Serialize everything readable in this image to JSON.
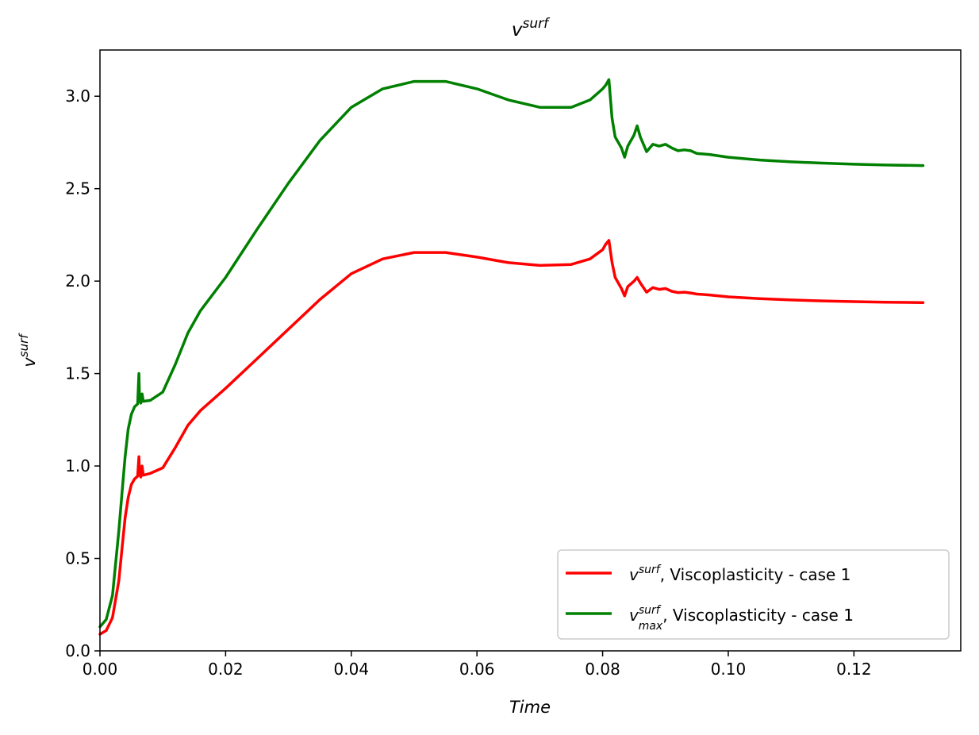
{
  "chart_data": {
    "type": "line",
    "title": {
      "base": "v",
      "sup": "surf"
    },
    "xlabel": "Time",
    "ylabel": {
      "base": "v",
      "sup": "surf"
    },
    "xlim": [
      0,
      0.137
    ],
    "ylim": [
      0,
      3.25
    ],
    "xticks": [
      0,
      0.02,
      0.04,
      0.06,
      0.08,
      0.1,
      0.12
    ],
    "xtick_labels": [
      "0.00",
      "0.02",
      "0.04",
      "0.06",
      "0.08",
      "0.10",
      "0.12"
    ],
    "yticks": [
      0,
      0.5,
      1.0,
      1.5,
      2.0,
      2.5,
      3.0
    ],
    "ytick_labels": [
      "0.0",
      "0.5",
      "1.0",
      "1.5",
      "2.0",
      "2.5",
      "3.0"
    ],
    "grid": false,
    "legend_position": "lower-right",
    "series": [
      {
        "name": {
          "base": "v",
          "sup": "surf",
          "sub": "",
          "text": ", Viscoplasticity - case 1"
        },
        "color": "#ff0000",
        "points": [
          [
            0.0,
            0.09
          ],
          [
            0.001,
            0.11
          ],
          [
            0.002,
            0.18
          ],
          [
            0.003,
            0.38
          ],
          [
            0.0035,
            0.55
          ],
          [
            0.004,
            0.72
          ],
          [
            0.0045,
            0.83
          ],
          [
            0.005,
            0.9
          ],
          [
            0.0055,
            0.93
          ],
          [
            0.006,
            0.945
          ],
          [
            0.0062,
            1.05
          ],
          [
            0.0063,
            0.96
          ],
          [
            0.0065,
            0.94
          ],
          [
            0.0067,
            1.0
          ],
          [
            0.0069,
            0.95
          ],
          [
            0.008,
            0.96
          ],
          [
            0.01,
            0.99
          ],
          [
            0.012,
            1.1
          ],
          [
            0.014,
            1.22
          ],
          [
            0.016,
            1.3
          ],
          [
            0.02,
            1.42
          ],
          [
            0.025,
            1.58
          ],
          [
            0.03,
            1.74
          ],
          [
            0.035,
            1.9
          ],
          [
            0.04,
            2.04
          ],
          [
            0.045,
            2.12
          ],
          [
            0.05,
            2.155
          ],
          [
            0.055,
            2.155
          ],
          [
            0.06,
            2.13
          ],
          [
            0.065,
            2.1
          ],
          [
            0.07,
            2.085
          ],
          [
            0.075,
            2.09
          ],
          [
            0.078,
            2.12
          ],
          [
            0.08,
            2.17
          ],
          [
            0.0805,
            2.2
          ],
          [
            0.081,
            2.22
          ],
          [
            0.0815,
            2.1
          ],
          [
            0.082,
            2.02
          ],
          [
            0.083,
            1.96
          ],
          [
            0.0835,
            1.92
          ],
          [
            0.084,
            1.97
          ],
          [
            0.085,
            2.0
          ],
          [
            0.0855,
            2.02
          ],
          [
            0.086,
            1.99
          ],
          [
            0.087,
            1.94
          ],
          [
            0.088,
            1.965
          ],
          [
            0.089,
            1.955
          ],
          [
            0.09,
            1.96
          ],
          [
            0.091,
            1.945
          ],
          [
            0.092,
            1.938
          ],
          [
            0.093,
            1.94
          ],
          [
            0.094,
            1.936
          ],
          [
            0.095,
            1.93
          ],
          [
            0.097,
            1.925
          ],
          [
            0.1,
            1.915
          ],
          [
            0.105,
            1.905
          ],
          [
            0.11,
            1.898
          ],
          [
            0.115,
            1.893
          ],
          [
            0.12,
            1.889
          ],
          [
            0.125,
            1.886
          ],
          [
            0.131,
            1.884
          ]
        ]
      },
      {
        "name": {
          "base": "v",
          "sup": "surf",
          "sub": "max",
          "text": ", Viscoplasticity - case 1"
        },
        "color": "#008000",
        "points": [
          [
            0.0,
            0.13
          ],
          [
            0.001,
            0.17
          ],
          [
            0.002,
            0.3
          ],
          [
            0.003,
            0.65
          ],
          [
            0.0035,
            0.85
          ],
          [
            0.004,
            1.05
          ],
          [
            0.0045,
            1.2
          ],
          [
            0.005,
            1.28
          ],
          [
            0.0055,
            1.32
          ],
          [
            0.006,
            1.335
          ],
          [
            0.0062,
            1.5
          ],
          [
            0.0063,
            1.36
          ],
          [
            0.0065,
            1.34
          ],
          [
            0.0067,
            1.39
          ],
          [
            0.0069,
            1.35
          ],
          [
            0.008,
            1.355
          ],
          [
            0.01,
            1.4
          ],
          [
            0.012,
            1.55
          ],
          [
            0.014,
            1.72
          ],
          [
            0.016,
            1.84
          ],
          [
            0.02,
            2.02
          ],
          [
            0.025,
            2.28
          ],
          [
            0.03,
            2.53
          ],
          [
            0.035,
            2.76
          ],
          [
            0.04,
            2.94
          ],
          [
            0.045,
            3.04
          ],
          [
            0.05,
            3.08
          ],
          [
            0.055,
            3.08
          ],
          [
            0.06,
            3.04
          ],
          [
            0.065,
            2.98
          ],
          [
            0.07,
            2.94
          ],
          [
            0.075,
            2.94
          ],
          [
            0.078,
            2.98
          ],
          [
            0.08,
            3.04
          ],
          [
            0.0805,
            3.06
          ],
          [
            0.081,
            3.09
          ],
          [
            0.0815,
            2.88
          ],
          [
            0.082,
            2.78
          ],
          [
            0.083,
            2.72
          ],
          [
            0.0835,
            2.67
          ],
          [
            0.084,
            2.73
          ],
          [
            0.085,
            2.79
          ],
          [
            0.0855,
            2.84
          ],
          [
            0.086,
            2.78
          ],
          [
            0.087,
            2.7
          ],
          [
            0.088,
            2.74
          ],
          [
            0.089,
            2.73
          ],
          [
            0.09,
            2.74
          ],
          [
            0.091,
            2.72
          ],
          [
            0.092,
            2.705
          ],
          [
            0.093,
            2.71
          ],
          [
            0.094,
            2.705
          ],
          [
            0.095,
            2.69
          ],
          [
            0.097,
            2.685
          ],
          [
            0.1,
            2.67
          ],
          [
            0.105,
            2.655
          ],
          [
            0.11,
            2.645
          ],
          [
            0.115,
            2.638
          ],
          [
            0.12,
            2.632
          ],
          [
            0.125,
            2.628
          ],
          [
            0.131,
            2.625
          ]
        ]
      }
    ]
  }
}
